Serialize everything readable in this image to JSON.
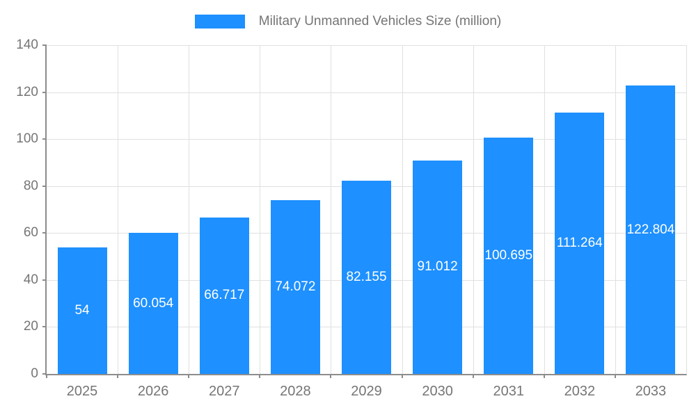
{
  "chart_data": {
    "type": "bar",
    "title": "Military Unmanned Vehicles Size (million)",
    "categories": [
      "2025",
      "2026",
      "2027",
      "2028",
      "2029",
      "2030",
      "2031",
      "2032",
      "2033"
    ],
    "values": [
      54,
      60.054,
      66.717,
      74.072,
      82.155,
      91.012,
      100.695,
      111.264,
      122.804
    ],
    "value_labels": [
      "54",
      "60.054",
      "66.717",
      "74.072",
      "82.155",
      "91.012",
      "100.695",
      "111.264",
      "122.804"
    ],
    "xlabel": "",
    "ylabel": "",
    "ylim": [
      0,
      140
    ],
    "y_ticks": [
      0,
      20,
      40,
      60,
      80,
      100,
      120,
      140
    ],
    "grid": true,
    "legend_position": "top-center",
    "colors": {
      "bar": "#1e90ff",
      "value_label": "#ffffff",
      "axis": "#8c8c8c",
      "gridline": "#e0e0e0",
      "tick_label": "#757575",
      "title": "#757575"
    }
  }
}
